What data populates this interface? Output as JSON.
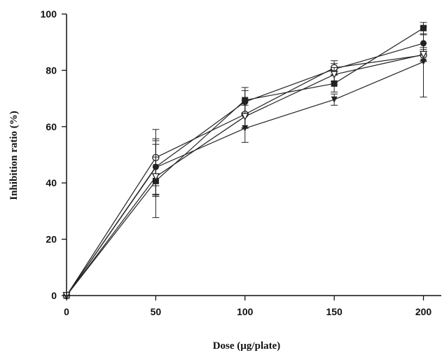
{
  "chart_data": {
    "type": "line",
    "title": "",
    "xlabel": "Dose (µg/plate)",
    "ylabel": "Inhibition ratio (%)",
    "xlim": [
      0,
      210
    ],
    "ylim": [
      0,
      100
    ],
    "xticks": [
      0,
      50,
      100,
      150,
      200
    ],
    "yticks": [
      0,
      20,
      40,
      60,
      80,
      100
    ],
    "x": [
      0,
      50,
      100,
      150,
      200
    ],
    "grid": false,
    "legend": "none",
    "series": [
      {
        "marker": "square-filled",
        "values": [
          0,
          40.7,
          69.4,
          75.3,
          95.0
        ],
        "errors": [
          0,
          13,
          4.5,
          3,
          2
        ]
      },
      {
        "marker": "circle-filled",
        "values": [
          0,
          45.7,
          68.8,
          80.4,
          89.6
        ],
        "errors": [
          0,
          10,
          4,
          2,
          3
        ]
      },
      {
        "marker": "circle-open",
        "values": [
          0,
          49.0,
          64.4,
          80.9,
          85.4
        ],
        "errors": [
          0,
          10,
          5,
          2.5,
          2
        ]
      },
      {
        "marker": "triangle-down-filled",
        "values": [
          0,
          45.5,
          59.4,
          69.6,
          83.0
        ],
        "errors": [
          0,
          9.5,
          5,
          2,
          12.5
        ]
      },
      {
        "marker": "triangle-down-open",
        "values": [
          0,
          42.2,
          63.6,
          78.5,
          85.6
        ],
        "errors": [
          0,
          7,
          4,
          2.5,
          2.5
        ]
      }
    ],
    "colors": {
      "line": "#222222",
      "axis": "#111111"
    }
  }
}
